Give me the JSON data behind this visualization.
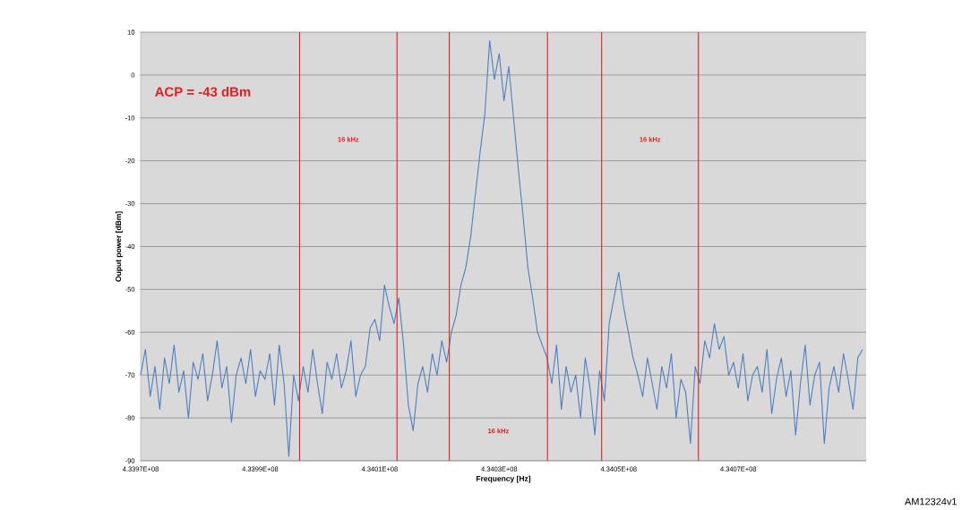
{
  "chart_data": {
    "type": "line",
    "xlabel": "Frequency [Hz]",
    "ylabel": "Ouput power [dBm]",
    "x": [
      433970000,
      433970800,
      433971600,
      433972400,
      433973200,
      433974000,
      433974800,
      433975600,
      433976400,
      433977200,
      433978000,
      433978800,
      433979600,
      433980400,
      433981200,
      433982000,
      433982800,
      433983600,
      433984400,
      433985200,
      433986000,
      433986800,
      433987600,
      433988400,
      433989200,
      433990000,
      433990800,
      433991600,
      433992400,
      433993200,
      433994000,
      433994800,
      433995600,
      433996400,
      433997200,
      433998000,
      433998800,
      433999600,
      434000400,
      434001200,
      434002000,
      434002800,
      434003600,
      434004400,
      434005200,
      434006000,
      434006800,
      434007600,
      434008400,
      434009200,
      434010000,
      434010800,
      434011600,
      434012400,
      434013200,
      434014000,
      434014800,
      434015600,
      434016400,
      434017200,
      434018000,
      434018800,
      434019600,
      434020400,
      434021200,
      434022000,
      434022800,
      434023600,
      434024400,
      434025200,
      434026000,
      434026800,
      434027600,
      434028400,
      434029200,
      434030000,
      434030800,
      434031600,
      434032400,
      434033200,
      434034000,
      434034800,
      434035600,
      434036400,
      434037200,
      434038000,
      434038800,
      434039600,
      434040400,
      434041200,
      434042000,
      434042800,
      434043600,
      434044400,
      434045200,
      434046000,
      434046800,
      434047600,
      434048400,
      434049200,
      434050000,
      434050800,
      434051600,
      434052400,
      434053200,
      434054000,
      434054800,
      434055600,
      434056400,
      434057200,
      434058000,
      434058800,
      434059600,
      434060400,
      434061200,
      434062000,
      434062800,
      434063600,
      434064400,
      434065200,
      434066000,
      434066800,
      434067600,
      434068400,
      434069200,
      434070000,
      434070800,
      434071600,
      434072400,
      434073200,
      434074000,
      434074800,
      434075600,
      434076400,
      434077200,
      434078000,
      434078800,
      434079600,
      434080400,
      434081200,
      434082000,
      434082800,
      434083600,
      434084400,
      434085200,
      434086000,
      434086800,
      434087600,
      434088400,
      434089200,
      434090000,
      434090800
    ],
    "series": [
      {
        "color": "#4f7fc0",
        "values": [
          -70,
          -64,
          -75,
          -68,
          -78,
          -66,
          -72,
          -63,
          -74,
          -69,
          -80,
          -67,
          -71,
          -65,
          -76,
          -70,
          -62,
          -73,
          -68,
          -81,
          -70,
          -66,
          -72,
          -64,
          -75,
          -69,
          -71,
          -65,
          -77,
          -63,
          -72,
          -89,
          -70,
          -76,
          -68,
          -74,
          -64,
          -72,
          -79,
          -67,
          -71,
          -65,
          -73,
          -69,
          -62,
          -75,
          -70,
          -68,
          -59,
          -57,
          -62,
          -49,
          -54,
          -58,
          -52,
          -63,
          -77,
          -83,
          -72,
          -68,
          -74,
          -65,
          -70,
          -62,
          -67,
          -60,
          -56,
          -49,
          -45,
          -38,
          -28,
          -18,
          -9,
          8,
          -1,
          5,
          -6,
          2,
          -10,
          -22,
          -33,
          -45,
          -52,
          -60,
          -63,
          -66,
          -72,
          -63,
          -78,
          -68,
          -74,
          -70,
          -80,
          -66,
          -73,
          -84,
          -69,
          -76,
          -58,
          -52,
          -46,
          -54,
          -60,
          -66,
          -70,
          -75,
          -66,
          -72,
          -78,
          -68,
          -73,
          -65,
          -80,
          -71,
          -74,
          -86,
          -68,
          -72,
          -62,
          -66,
          -58,
          -64,
          -61,
          -70,
          -67,
          -73,
          -65,
          -76,
          -70,
          -68,
          -74,
          -64,
          -79,
          -71,
          -66,
          -75,
          -69,
          -84,
          -72,
          -63,
          -77,
          -70,
          -67,
          -86,
          -73,
          -68,
          -74,
          -65,
          -71,
          -78,
          -66,
          -64
        ]
      }
    ],
    "xlim": [
      433970000,
      434091400
    ],
    "ylim": [
      -90,
      10
    ],
    "xticks": [
      {
        "value": 433970000,
        "label": "4.3397E+08"
      },
      {
        "value": 433990000,
        "label": "4.3399E+08"
      },
      {
        "value": 434010000,
        "label": "4.3401E+08"
      },
      {
        "value": 434030000,
        "label": "4.3403E+08"
      },
      {
        "value": 434050000,
        "label": "4.3405E+08"
      },
      {
        "value": 434070000,
        "label": "4.3407E+08"
      }
    ],
    "yticks": [
      10,
      0,
      -10,
      -20,
      -30,
      -40,
      -50,
      -60,
      -70,
      -80,
      -90
    ],
    "grid": "y",
    "ref_lines": [
      {
        "axis": "x",
        "value": 433996600,
        "color": "#e41e1e"
      },
      {
        "axis": "x",
        "value": 434012900,
        "color": "#e41e1e"
      },
      {
        "axis": "x",
        "value": 434021650,
        "color": "#e41e1e"
      },
      {
        "axis": "x",
        "value": 434038070,
        "color": "#e41e1e"
      },
      {
        "axis": "x",
        "value": 434047140,
        "color": "#e41e1e"
      },
      {
        "axis": "x",
        "value": 434063330,
        "color": "#e41e1e"
      }
    ],
    "annotations": [
      "ACP = -43 dBm",
      "16 kHz",
      "16 kHz",
      "16 kHz",
      "AM12324v1"
    ]
  }
}
